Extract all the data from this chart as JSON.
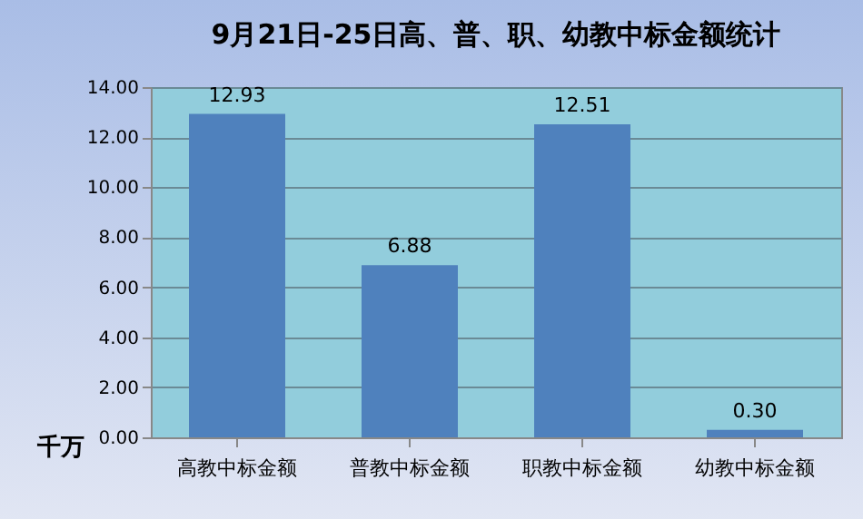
{
  "chart_data": {
    "type": "bar",
    "title": "9月21日-25日高、普、职、幼教中标金额统计",
    "ylabel": "千万",
    "categories": [
      "高教中标金额",
      "普教中标金额",
      "职教中标金额",
      "幼教中标金额"
    ],
    "values": [
      12.93,
      6.88,
      12.51,
      0.3
    ],
    "color": "#4f81bd",
    "value_labels": [
      "12.93",
      "6.88",
      "12.51",
      "0.30"
    ],
    "ylim": [
      0,
      14
    ],
    "yticks": [
      {
        "value": 0,
        "label": "0.00"
      },
      {
        "value": 2,
        "label": "2.00"
      },
      {
        "value": 4,
        "label": "4.00"
      },
      {
        "value": 6,
        "label": "6.00"
      },
      {
        "value": 8,
        "label": "8.00"
      },
      {
        "value": 10,
        "label": "10.00"
      },
      {
        "value": 12,
        "label": "12.00"
      },
      {
        "value": 14,
        "label": "14.00"
      }
    ],
    "grid": "y"
  }
}
